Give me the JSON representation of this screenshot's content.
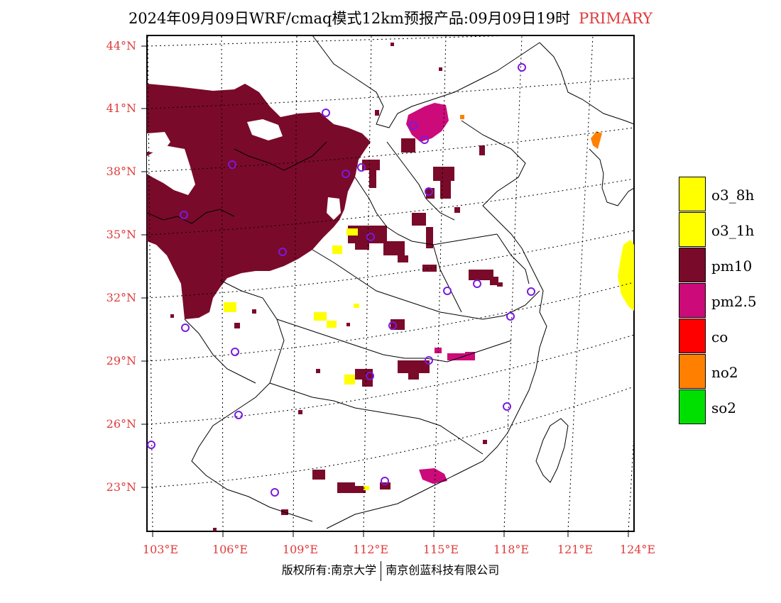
{
  "title": {
    "main": "2024年09月09日WRF/cmaq模式12km预报产品:09月09日19时",
    "tag": "PRIMARY",
    "tag_color": "#e03a3a"
  },
  "axes": {
    "lat_labels": [
      "44°N",
      "41°N",
      "38°N",
      "35°N",
      "32°N",
      "29°N",
      "26°N",
      "23°N"
    ],
    "lon_labels": [
      "103°E",
      "106°E",
      "109°E",
      "112°E",
      "115°E",
      "118°E",
      "121°E",
      "124°E"
    ],
    "label_color": "#e03a3a"
  },
  "legend": [
    {
      "label": "o3_8h",
      "color": "#ffff00"
    },
    {
      "label": "o3_1h",
      "color": "#ffff00"
    },
    {
      "label": "pm10",
      "color": "#7a0a2a"
    },
    {
      "label": "pm2.5",
      "color": "#cc0a7a"
    },
    {
      "label": "co",
      "color": "#ff0000"
    },
    {
      "label": "no2",
      "color": "#ff8000"
    },
    {
      "label": "so2",
      "color": "#00e000"
    }
  ],
  "footer": {
    "left": "版权所有:南京大学",
    "right": "南京创蓝科技有限公司"
  }
}
